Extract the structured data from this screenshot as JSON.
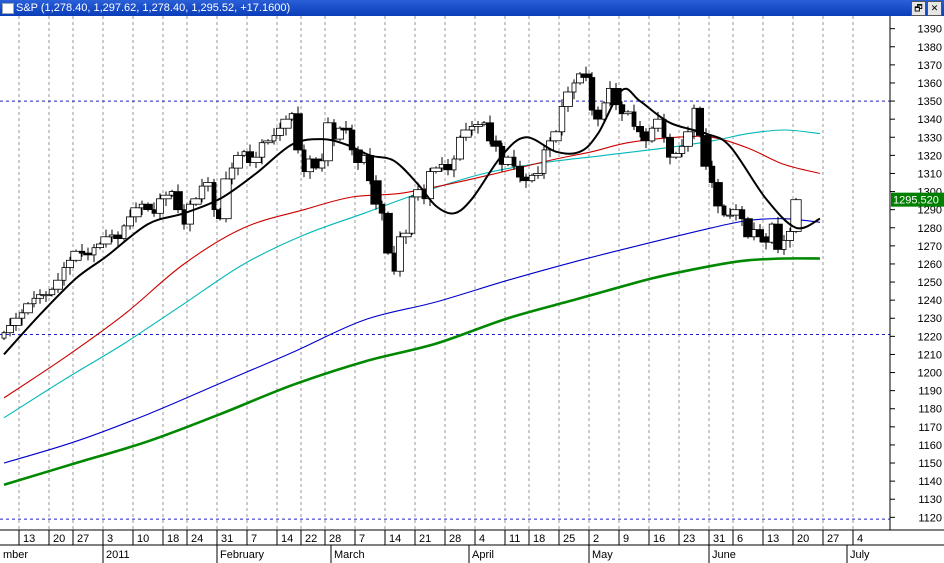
{
  "window": {
    "symbol": "S&P",
    "ohlc_readout": "(1,278.40, 1,297.62, 1,278.40, 1,295.52, +17.1600)",
    "restore_glyph": "🗗",
    "close_glyph": "✕"
  },
  "chart_data": {
    "type": "candlestick",
    "ylim": [
      1113,
      1397
    ],
    "y_ticks": [
      1120,
      1130,
      1140,
      1150,
      1160,
      1170,
      1180,
      1190,
      1200,
      1210,
      1220,
      1230,
      1240,
      1250,
      1260,
      1270,
      1280,
      1290,
      1300,
      1310,
      1320,
      1330,
      1340,
      1350,
      1360,
      1370,
      1380,
      1390
    ],
    "last_price_label": "1295.520",
    "last_price": 1295.52,
    "reference_lines": [
      1350,
      1221,
      1119
    ],
    "grid": "vertical dashed at week starts",
    "day_ticks": [
      {
        "label": "13",
        "i": 3
      },
      {
        "label": "20",
        "i": 8
      },
      {
        "label": "27",
        "i": 12
      },
      {
        "label": "3",
        "i": 17
      },
      {
        "label": "10",
        "i": 22
      },
      {
        "label": "18",
        "i": 27
      },
      {
        "label": "24",
        "i": 31
      },
      {
        "label": "31",
        "i": 36
      },
      {
        "label": "7",
        "i": 41
      },
      {
        "label": "14",
        "i": 46
      },
      {
        "label": "22",
        "i": 50
      },
      {
        "label": "28",
        "i": 54
      },
      {
        "label": "7",
        "i": 59
      },
      {
        "label": "14",
        "i": 64
      },
      {
        "label": "21",
        "i": 69
      },
      {
        "label": "28",
        "i": 74
      },
      {
        "label": "4",
        "i": 79
      },
      {
        "label": "11",
        "i": 84
      },
      {
        "label": "18",
        "i": 88
      },
      {
        "label": "25",
        "i": 93
      },
      {
        "label": "2",
        "i": 98
      },
      {
        "label": "9",
        "i": 103
      },
      {
        "label": "16",
        "i": 108
      },
      {
        "label": "23",
        "i": 113
      },
      {
        "label": "31",
        "i": 118
      },
      {
        "label": "6",
        "i": 122
      },
      {
        "label": "13",
        "i": 127
      },
      {
        "label": "20",
        "i": 132
      },
      {
        "label": "27",
        "i": 137
      },
      {
        "label": "4",
        "i": 142
      }
    ],
    "month_labels": [
      {
        "label": "mber",
        "i": 0
      },
      {
        "label": "2011",
        "i": 17
      },
      {
        "label": "February",
        "i": 36
      },
      {
        "label": "March",
        "i": 55
      },
      {
        "label": "April",
        "i": 78
      },
      {
        "label": "May",
        "i": 98
      },
      {
        "label": "June",
        "i": 118
      },
      {
        "label": "July",
        "i": 141
      }
    ],
    "close": [
      1222,
      1226,
      1230,
      1233,
      1238,
      1241,
      1243,
      1243,
      1246,
      1251,
      1258,
      1262,
      1267,
      1266,
      1265,
      1269,
      1271,
      1275,
      1276,
      1274,
      1281,
      1286,
      1291,
      1293,
      1290,
      1288,
      1296,
      1298,
      1300,
      1290,
      1282,
      1293,
      1296,
      1303,
      1305,
      1290,
      1285,
      1307,
      1313,
      1320,
      1322,
      1316,
      1319,
      1327,
      1328,
      1331,
      1335,
      1340,
      1343,
      1323,
      1311,
      1318,
      1313,
      1317,
      1338,
      1329,
      1335,
      1334,
      1323,
      1316,
      1320,
      1306,
      1293,
      1288,
      1266,
      1256,
      1275,
      1277,
      1297,
      1301,
      1296,
      1311,
      1313,
      1315,
      1312,
      1318,
      1330,
      1334,
      1336,
      1337,
      1338,
      1328,
      1325,
      1315,
      1319,
      1314,
      1308,
      1306,
      1309,
      1310,
      1323,
      1328,
      1333,
      1347,
      1355,
      1360,
      1365,
      1363,
      1345,
      1340,
      1349,
      1357,
      1348,
      1343,
      1344,
      1336,
      1333,
      1328,
      1335,
      1340,
      1330,
      1319,
      1321,
      1325,
      1333,
      1346,
      1331,
      1314,
      1305,
      1292,
      1287,
      1287,
      1290,
      1285,
      1275,
      1279,
      1275,
      1272,
      1282,
      1268,
      1273,
      1278,
      1295.52
    ],
    "moving_averages": [
      {
        "period": "short",
        "color": "#000000"
      },
      {
        "period": "50",
        "color": "#cc0000"
      },
      {
        "period": "20",
        "color": "#00b8b8"
      },
      {
        "period": "100",
        "color": "#0000cc"
      },
      {
        "period": "200",
        "color": "#008800"
      }
    ],
    "ma_points": {
      "ma_short": [
        [
          0,
          1210
        ],
        [
          6,
          1232
        ],
        [
          12,
          1252
        ],
        [
          17,
          1264
        ],
        [
          24,
          1282
        ],
        [
          30,
          1288
        ],
        [
          36,
          1296
        ],
        [
          42,
          1310
        ],
        [
          48,
          1326
        ],
        [
          53,
          1329
        ],
        [
          57,
          1326
        ],
        [
          61,
          1320
        ],
        [
          65,
          1317
        ],
        [
          69,
          1304
        ],
        [
          72,
          1292
        ],
        [
          75,
          1288
        ],
        [
          78,
          1296
        ],
        [
          83,
          1320
        ],
        [
          87,
          1330
        ],
        [
          92,
          1322
        ],
        [
          96,
          1322
        ],
        [
          99,
          1332
        ],
        [
          103,
          1356
        ],
        [
          106,
          1350
        ],
        [
          111,
          1338
        ],
        [
          117,
          1332
        ],
        [
          121,
          1325
        ],
        [
          127,
          1296
        ],
        [
          132,
          1280
        ],
        [
          136,
          1285
        ]
      ],
      "ma_red": [
        [
          0,
          1186
        ],
        [
          10,
          1208
        ],
        [
          20,
          1232
        ],
        [
          30,
          1260
        ],
        [
          40,
          1280
        ],
        [
          50,
          1290
        ],
        [
          58,
          1297
        ],
        [
          66,
          1299
        ],
        [
          74,
          1304
        ],
        [
          82,
          1310
        ],
        [
          92,
          1318
        ],
        [
          98,
          1322
        ],
        [
          104,
          1327
        ],
        [
          112,
          1330
        ],
        [
          118,
          1330
        ],
        [
          124,
          1324
        ],
        [
          130,
          1315
        ],
        [
          136,
          1310
        ]
      ],
      "ma_cyan": [
        [
          0,
          1175
        ],
        [
          10,
          1196
        ],
        [
          20,
          1216
        ],
        [
          30,
          1238
        ],
        [
          40,
          1260
        ],
        [
          50,
          1276
        ],
        [
          60,
          1288
        ],
        [
          70,
          1300
        ],
        [
          80,
          1310
        ],
        [
          90,
          1316
        ],
        [
          100,
          1320
        ],
        [
          110,
          1324
        ],
        [
          118,
          1328
        ],
        [
          124,
          1332
        ],
        [
          130,
          1334
        ],
        [
          136,
          1332
        ]
      ],
      "ma_blue": [
        [
          0,
          1150
        ],
        [
          12,
          1162
        ],
        [
          24,
          1177
        ],
        [
          36,
          1194
        ],
        [
          48,
          1211
        ],
        [
          60,
          1229
        ],
        [
          72,
          1239
        ],
        [
          84,
          1251
        ],
        [
          96,
          1262
        ],
        [
          108,
          1272
        ],
        [
          118,
          1280
        ],
        [
          124,
          1284
        ],
        [
          130,
          1285
        ],
        [
          136,
          1283
        ]
      ],
      "ma_green": [
        [
          0,
          1138
        ],
        [
          12,
          1150
        ],
        [
          24,
          1162
        ],
        [
          36,
          1177
        ],
        [
          48,
          1193
        ],
        [
          60,
          1206
        ],
        [
          72,
          1216
        ],
        [
          84,
          1230
        ],
        [
          96,
          1241
        ],
        [
          108,
          1252
        ],
        [
          118,
          1259
        ],
        [
          124,
          1262
        ],
        [
          130,
          1263
        ],
        [
          136,
          1263
        ]
      ]
    }
  }
}
